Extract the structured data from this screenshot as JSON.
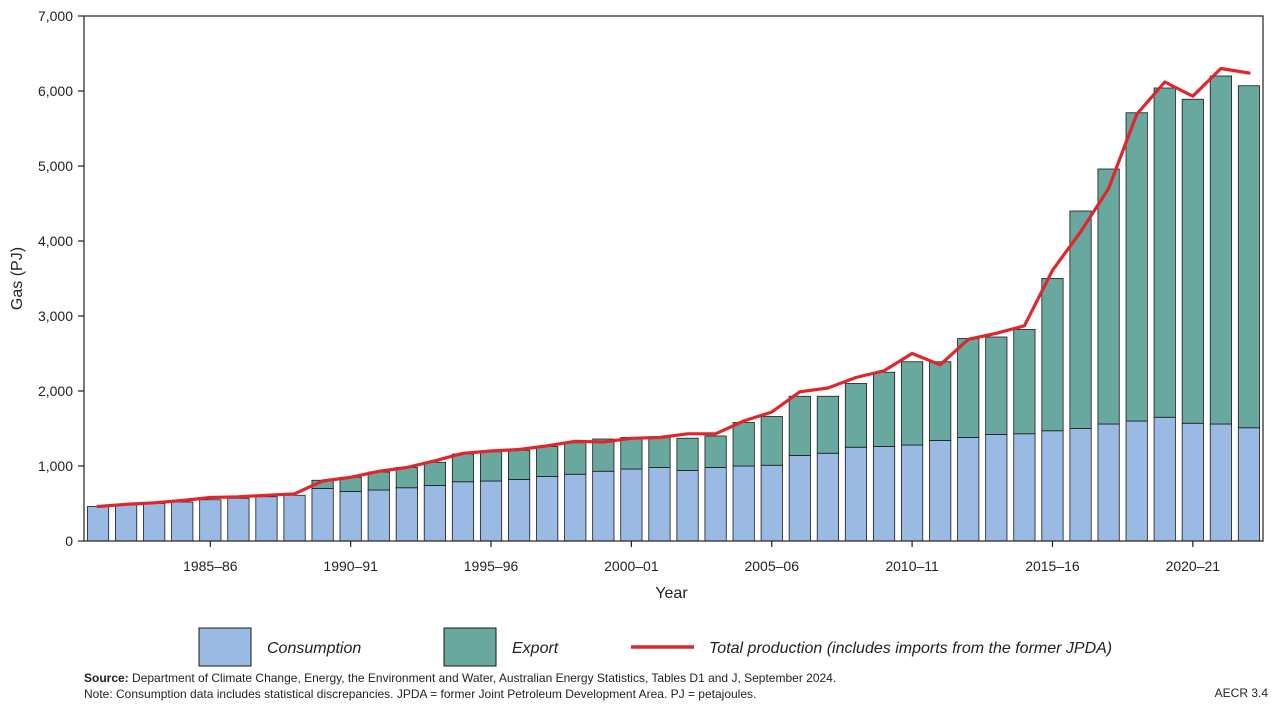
{
  "chart_data": {
    "type": "bar",
    "stacked": true,
    "xlabel": "Year",
    "ylabel": "Gas (PJ)",
    "ylim": [
      0,
      7000
    ],
    "yticks": [
      "0",
      "1,000",
      "2,000",
      "3,000",
      "4,000",
      "5,000",
      "6,000",
      "7,000"
    ],
    "ytick_values": [
      0,
      1000,
      2000,
      3000,
      4000,
      5000,
      6000,
      7000
    ],
    "categories": [
      "1981-82",
      "1982-83",
      "1983-84",
      "1984-85",
      "1985-86",
      "1986-87",
      "1987-88",
      "1988-89",
      "1989-90",
      "1990-91",
      "1991-92",
      "1992-93",
      "1993-94",
      "1994-95",
      "1995-96",
      "1996-97",
      "1997-98",
      "1998-99",
      "1999-00",
      "2000-01",
      "2001-02",
      "2002-03",
      "2003-04",
      "2004-05",
      "2005-06",
      "2006-07",
      "2007-08",
      "2008-09",
      "2009-10",
      "2010-11",
      "2011-12",
      "2012-13",
      "2013-14",
      "2014-15",
      "2015-16",
      "2016-17",
      "2017-18",
      "2018-19",
      "2019-20",
      "2020-21",
      "2021-22",
      "2022-23"
    ],
    "xtick_labels": [
      {
        "index": 4,
        "label": "1985–86"
      },
      {
        "index": 9,
        "label": "1990–91"
      },
      {
        "index": 14,
        "label": "1995–96"
      },
      {
        "index": 19,
        "label": "2000–01"
      },
      {
        "index": 24,
        "label": "2005–06"
      },
      {
        "index": 29,
        "label": "2010–11"
      },
      {
        "index": 34,
        "label": "2015–16"
      },
      {
        "index": 39,
        "label": "2020–21"
      }
    ],
    "series": [
      {
        "name": "Consumption",
        "kind": "bar",
        "color": "#9ab9e3",
        "values": [
          460,
          480,
          500,
          520,
          550,
          570,
          590,
          610,
          700,
          660,
          680,
          710,
          740,
          790,
          800,
          820,
          860,
          890,
          930,
          960,
          980,
          940,
          980,
          1000,
          1010,
          1140,
          1170,
          1250,
          1260,
          1280,
          1340,
          1380,
          1420,
          1430,
          1470,
          1500,
          1560,
          1600,
          1650,
          1570,
          1560,
          1510
        ]
      },
      {
        "name": "Export",
        "kind": "bar",
        "color": "#68a89f",
        "values": [
          0,
          0,
          0,
          0,
          0,
          0,
          0,
          0,
          110,
          190,
          240,
          270,
          310,
          370,
          390,
          390,
          400,
          420,
          430,
          420,
          410,
          430,
          420,
          580,
          650,
          790,
          760,
          850,
          990,
          1110,
          1050,
          1320,
          1300,
          1390,
          2030,
          2900,
          3400,
          4110,
          4390,
          4320,
          4640,
          4560
        ]
      },
      {
        "name": "Total production (includes imports from the former JPDA)",
        "kind": "line",
        "color": "#e0262b",
        "values": [
          460,
          490,
          510,
          540,
          580,
          590,
          610,
          630,
          800,
          850,
          930,
          980,
          1070,
          1170,
          1200,
          1220,
          1270,
          1330,
          1320,
          1370,
          1380,
          1430,
          1430,
          1600,
          1720,
          1990,
          2040,
          2180,
          2270,
          2500,
          2350,
          2690,
          2770,
          2870,
          3610,
          4120,
          4700,
          5690,
          6120,
          5930,
          6300,
          6240
        ]
      }
    ],
    "legend_position": "bottom",
    "grid": false
  },
  "footer": {
    "source_label": "Source:",
    "source_text": " Department of Climate Change, Energy, the Environment and Water, Australian Energy Statistics, Tables D1 and J, September 2024.",
    "note_text": "Note: Consumption data includes statistical discrepancies. JPDA = former Joint Petroleum Development Area.  PJ = petajoules.",
    "ref_code": "AECR 3.4"
  }
}
